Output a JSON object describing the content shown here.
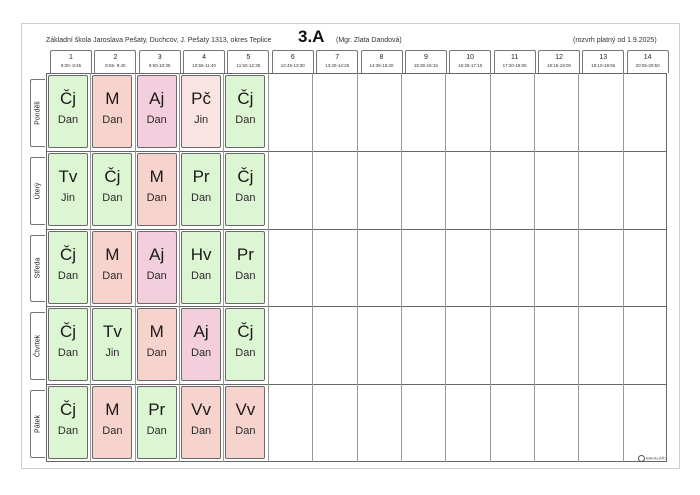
{
  "header": {
    "school": "Základní škola Jaroslava Pešaty, Duchcov, J. Pešaty 1313, okres Teplice",
    "class_name": "3.A",
    "teacher": "(Mgr. Zlata Dandová)",
    "validity": "(rozvrh platný od 1.9.2025)"
  },
  "periods": [
    {
      "num": "1",
      "time": "8:00- 8:45"
    },
    {
      "num": "2",
      "time": "8:55- 9:40"
    },
    {
      "num": "3",
      "time": "9:50-10:35"
    },
    {
      "num": "4",
      "time": "10:55-11:40"
    },
    {
      "num": "5",
      "time": "11:50-12:35"
    },
    {
      "num": "6",
      "time": "12:45-13:30"
    },
    {
      "num": "7",
      "time": "13:40-14:25"
    },
    {
      "num": "8",
      "time": "14:35-15:20"
    },
    {
      "num": "9",
      "time": "15:30-16:15"
    },
    {
      "num": "10",
      "time": "16:25-17:10"
    },
    {
      "num": "11",
      "time": "17:20-18:05"
    },
    {
      "num": "12",
      "time": "18:15-19:00"
    },
    {
      "num": "13",
      "time": "19:10-19:55"
    },
    {
      "num": "14",
      "time": "20:05-20:50"
    }
  ],
  "days": [
    {
      "name": "Pondělí",
      "lessons": [
        {
          "subject": "Čj",
          "teacher": "Dan",
          "color": "#dcf5d3"
        },
        {
          "subject": "M",
          "teacher": "Dan",
          "color": "#f6d3cc"
        },
        {
          "subject": "Aj",
          "teacher": "Dan",
          "color": "#f3cedd"
        },
        {
          "subject": "Pč",
          "teacher": "Jin",
          "color": "#fae4e3"
        },
        {
          "subject": "Čj",
          "teacher": "Dan",
          "color": "#dcf5d3"
        }
      ]
    },
    {
      "name": "Úterý",
      "lessons": [
        {
          "subject": "Tv",
          "teacher": "Jin",
          "color": "#dcf5d3"
        },
        {
          "subject": "Čj",
          "teacher": "Dan",
          "color": "#dcf5d3"
        },
        {
          "subject": "M",
          "teacher": "Dan",
          "color": "#f6d3cc"
        },
        {
          "subject": "Pr",
          "teacher": "Dan",
          "color": "#dcf5d3"
        },
        {
          "subject": "Čj",
          "teacher": "Dan",
          "color": "#dcf5d3"
        }
      ]
    },
    {
      "name": "Středa",
      "lessons": [
        {
          "subject": "Čj",
          "teacher": "Dan",
          "color": "#dcf5d3"
        },
        {
          "subject": "M",
          "teacher": "Dan",
          "color": "#f6d3cc"
        },
        {
          "subject": "Aj",
          "teacher": "Dan",
          "color": "#f3cedd"
        },
        {
          "subject": "Hv",
          "teacher": "Dan",
          "color": "#dcf5d3"
        },
        {
          "subject": "Pr",
          "teacher": "Dan",
          "color": "#dcf5d3"
        }
      ]
    },
    {
      "name": "Čtvrtek",
      "lessons": [
        {
          "subject": "Čj",
          "teacher": "Dan",
          "color": "#dcf5d3"
        },
        {
          "subject": "Tv",
          "teacher": "Jin",
          "color": "#dcf5d3"
        },
        {
          "subject": "M",
          "teacher": "Dan",
          "color": "#f6d3cc"
        },
        {
          "subject": "Aj",
          "teacher": "Dan",
          "color": "#f3cedd"
        },
        {
          "subject": "Čj",
          "teacher": "Dan",
          "color": "#dcf5d3"
        }
      ]
    },
    {
      "name": "Pátek",
      "lessons": [
        {
          "subject": "Čj",
          "teacher": "Dan",
          "color": "#dcf5d3"
        },
        {
          "subject": "M",
          "teacher": "Dan",
          "color": "#f6d3cc"
        },
        {
          "subject": "Pr",
          "teacher": "Dan",
          "color": "#dcf5d3"
        },
        {
          "subject": "Vv",
          "teacher": "Dan",
          "color": "#f6d3cc"
        },
        {
          "subject": "Vv",
          "teacher": "Dan",
          "color": "#f6d3cc"
        }
      ]
    }
  ],
  "footer": {
    "brand": "BAKALÁŘI",
    "brand_icon": "bakalari-logo-icon"
  }
}
